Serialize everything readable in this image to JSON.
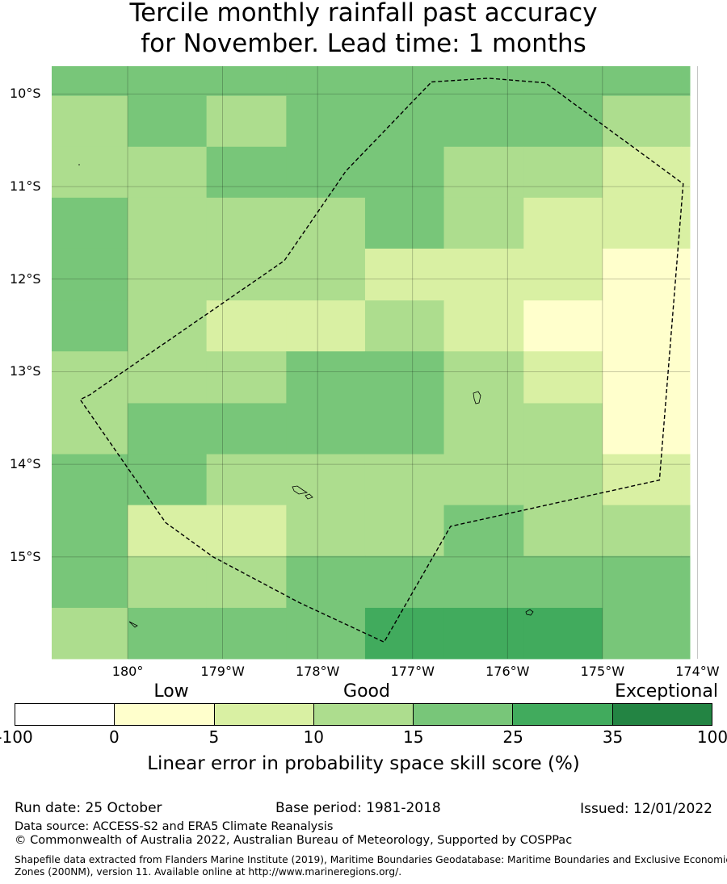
{
  "title": {
    "line1": "Tercile monthly rainfall past accuracy",
    "line2": "for November. Lead time: 1 months"
  },
  "map": {
    "lat_ticks": [
      "10°S",
      "11°S",
      "12°S",
      "13°S",
      "14°S",
      "15°S"
    ],
    "lon_ticks": [
      "180°",
      "179°W",
      "178°W",
      "177°W",
      "176°W",
      "175°W",
      "174°W"
    ],
    "grid_columns_lon": [
      -180.8,
      -180.0,
      -179.17,
      -178.33,
      -177.5,
      -176.67,
      -175.83,
      -175.0,
      -174.17,
      -174.08
    ],
    "grid_rows_lat": [
      -9.7,
      -10.02,
      -10.57,
      -11.12,
      -11.67,
      -12.23,
      -12.78,
      -13.34,
      -13.89,
      -14.44,
      -14.99,
      -15.55,
      -16.1
    ],
    "cell_classes": [
      [
        4,
        4,
        4,
        4,
        4,
        4,
        4,
        4,
        4,
        4
      ],
      [
        3,
        4,
        3,
        4,
        4,
        4,
        4,
        3,
        3,
        4
      ],
      [
        3,
        3,
        4,
        4,
        4,
        3,
        3,
        2,
        2,
        2
      ],
      [
        4,
        3,
        3,
        3,
        4,
        3,
        2,
        2,
        2,
        2
      ],
      [
        4,
        3,
        3,
        3,
        2,
        2,
        2,
        1,
        1,
        1
      ],
      [
        4,
        3,
        2,
        2,
        3,
        2,
        1,
        1,
        1,
        2
      ],
      [
        3,
        3,
        3,
        4,
        4,
        3,
        2,
        1,
        1,
        2
      ],
      [
        3,
        4,
        4,
        4,
        4,
        3,
        3,
        1,
        1,
        3
      ],
      [
        4,
        4,
        3,
        3,
        3,
        3,
        3,
        2,
        2,
        2
      ],
      [
        4,
        2,
        2,
        3,
        3,
        4,
        3,
        3,
        3,
        2
      ],
      [
        4,
        3,
        3,
        4,
        4,
        4,
        4,
        4,
        4,
        3
      ],
      [
        3,
        4,
        4,
        4,
        5,
        5,
        5,
        4,
        4,
        3
      ]
    ],
    "eez_boundary": [
      [
        -176.8,
        -9.87
      ],
      [
        -176.2,
        -9.83
      ],
      [
        -175.6,
        -9.88
      ],
      [
        -174.15,
        -10.97
      ],
      [
        -174.4,
        -14.17
      ],
      [
        -176.6,
        -14.67
      ],
      [
        -177.3,
        -15.92
      ],
      [
        -178.2,
        -15.49
      ],
      [
        -179.1,
        -15.0
      ],
      [
        -179.6,
        -14.63
      ],
      [
        -180.5,
        -13.3
      ],
      [
        -180.4,
        -13.25
      ],
      [
        -178.35,
        -11.8
      ],
      [
        -177.7,
        -10.83
      ],
      [
        -176.8,
        -9.87
      ]
    ]
  },
  "legend": {
    "category_labels": [
      "Low",
      "Good",
      "Exceptional"
    ],
    "ticks": [
      "-100",
      "0",
      "5",
      "10",
      "15",
      "25",
      "35",
      "100"
    ],
    "colors": [
      "#ffffff",
      "#ffffcc",
      "#d9f0a3",
      "#addd8e",
      "#78c679",
      "#41ab5d",
      "#238443"
    ],
    "title": "Linear error in probability space skill score (%)"
  },
  "footer": {
    "run_date": "Run date: 25 October",
    "base_period": "Base period: 1981-2018",
    "issued": "Issued: 12/01/2022",
    "data_source": "Data source: ACCESS-S2 and ERA5 Climate Reanalysis",
    "copyright": "© Commonwealth of Australia 2022, Australian Bureau of Meteorology, Supported by COSPPac",
    "shapefile_line1": "Shapefile data extracted from Flanders Marine Institute (2019), Maritime Boundaries Geodatabase: Maritime Boundaries and Exclusive Economic",
    "shapefile_line2": "Zones (200NM), version 11. Available online at http://www.marineregions.org/."
  }
}
